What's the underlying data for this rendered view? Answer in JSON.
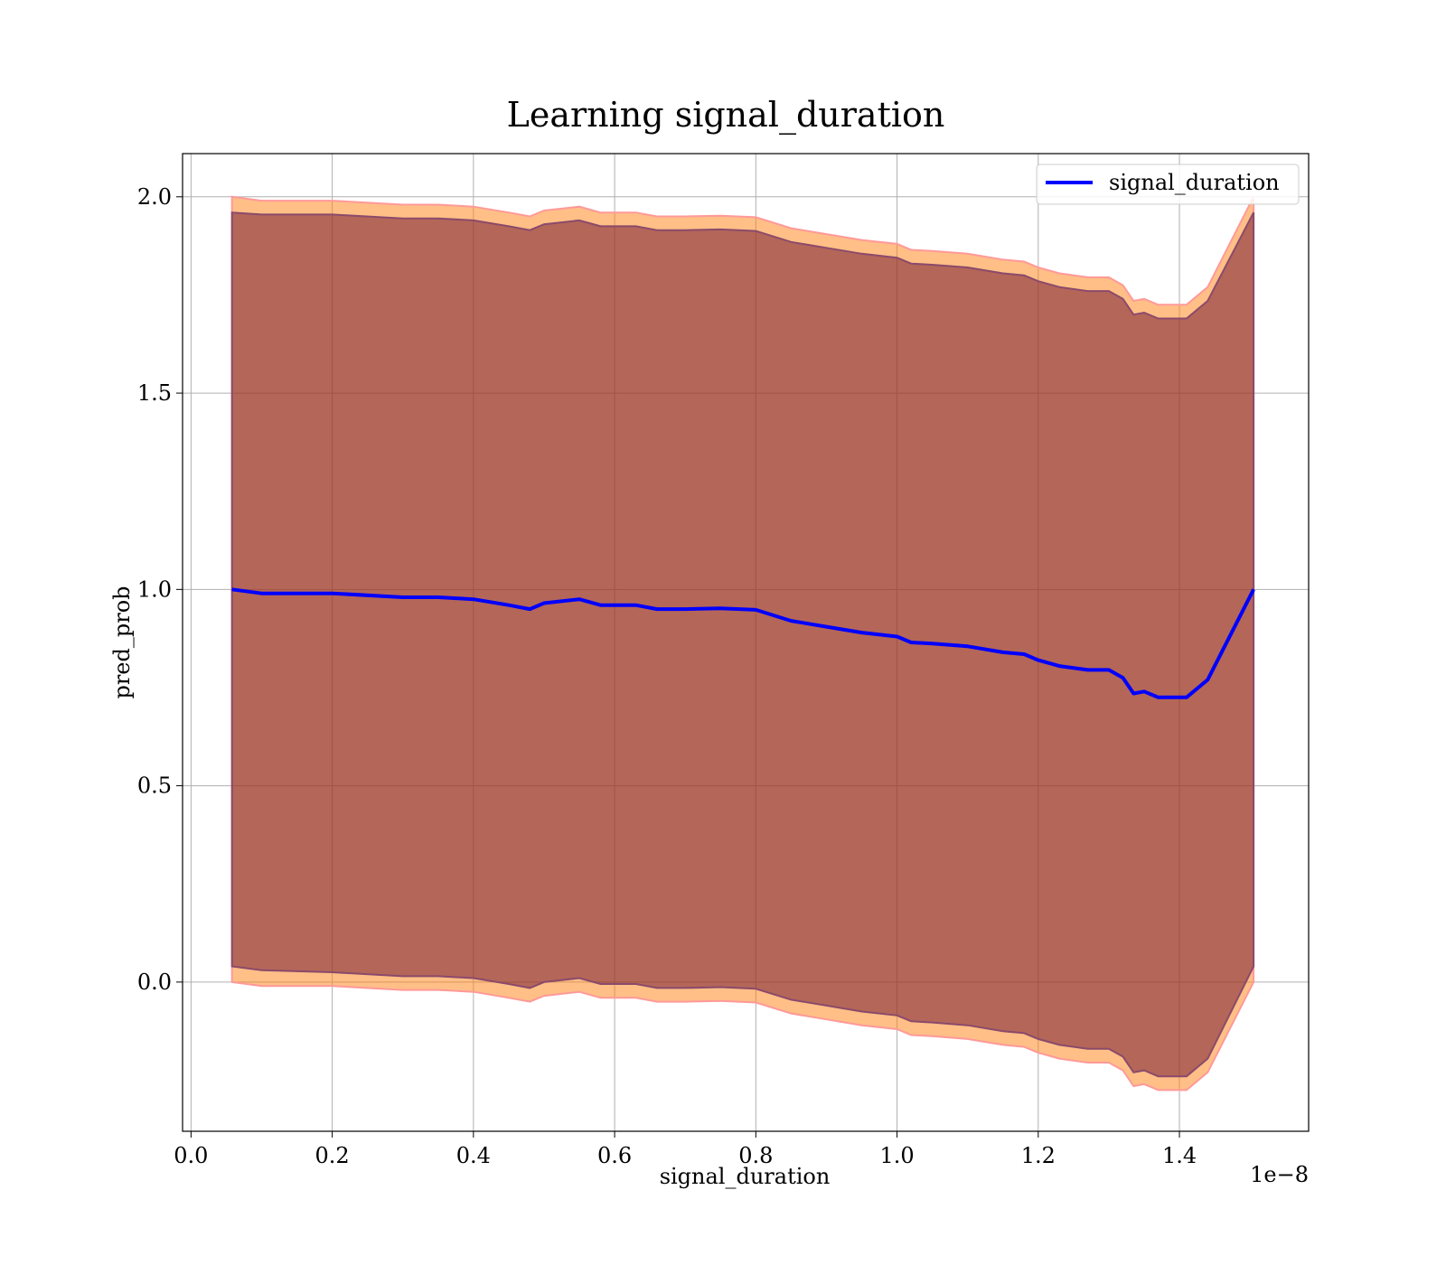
{
  "chart_data": {
    "type": "line",
    "title": "Learning signal_duration",
    "xlabel": "signal_duration",
    "ylabel": "pred_prob",
    "x_offset_text": "1e−8",
    "xlim": [
      -1.2e-10,
      1.583e-08
    ],
    "ylim": [
      -0.38,
      2.11
    ],
    "xticks": [
      0.0,
      2e-09,
      4e-09,
      6e-09,
      8e-09,
      1e-08,
      1.2e-08,
      1.4e-08
    ],
    "xtick_labels": [
      "0.0",
      "0.2",
      "0.4",
      "0.6",
      "0.8",
      "1.0",
      "1.2",
      "1.4"
    ],
    "yticks": [
      0.0,
      0.5,
      1.0,
      1.5,
      2.0
    ],
    "ytick_labels": [
      "0.0",
      "0.5",
      "1.0",
      "1.5",
      "2.0"
    ],
    "grid": true,
    "legend_position": "top-right",
    "series": [
      {
        "name": "signal_duration",
        "color": "#0000ff",
        "x": [
          5.8e-10,
          1e-09,
          2e-09,
          3e-09,
          3.5e-09,
          4e-09,
          4.5e-09,
          4.8e-09,
          5e-09,
          5.5e-09,
          5.8e-09,
          6e-09,
          6.3e-09,
          6.6e-09,
          7e-09,
          7.5e-09,
          8e-09,
          8.5e-09,
          9e-09,
          9.5e-09,
          1e-08,
          1.02e-08,
          1.05e-08,
          1.1e-08,
          1.15e-08,
          1.18e-08,
          1.2e-08,
          1.23e-08,
          1.27e-08,
          1.3e-08,
          1.32e-08,
          1.335e-08,
          1.35e-08,
          1.37e-08,
          1.41e-08,
          1.44e-08,
          1.505e-08
        ],
        "y": [
          1.0,
          0.99,
          0.99,
          0.98,
          0.98,
          0.975,
          0.96,
          0.95,
          0.965,
          0.975,
          0.96,
          0.96,
          0.96,
          0.95,
          0.95,
          0.952,
          0.948,
          0.92,
          0.905,
          0.89,
          0.88,
          0.865,
          0.862,
          0.855,
          0.84,
          0.835,
          0.82,
          0.805,
          0.795,
          0.795,
          0.775,
          0.735,
          0.74,
          0.725,
          0.725,
          0.77,
          1.0
        ]
      }
    ],
    "bands": [
      {
        "color": "#ff7f0e",
        "edge_color": "#ff9999",
        "x": [
          5.8e-10,
          1e-09,
          2e-09,
          3e-09,
          3.5e-09,
          4e-09,
          4.5e-09,
          4.8e-09,
          5e-09,
          5.5e-09,
          5.8e-09,
          6e-09,
          6.3e-09,
          6.6e-09,
          7e-09,
          7.5e-09,
          8e-09,
          8.5e-09,
          9e-09,
          9.5e-09,
          1e-08,
          1.02e-08,
          1.05e-08,
          1.1e-08,
          1.15e-08,
          1.18e-08,
          1.2e-08,
          1.23e-08,
          1.27e-08,
          1.3e-08,
          1.32e-08,
          1.335e-08,
          1.35e-08,
          1.37e-08,
          1.41e-08,
          1.44e-08,
          1.505e-08
        ],
        "lower": [
          0.0,
          -0.01,
          -0.01,
          -0.02,
          -0.02,
          -0.025,
          -0.04,
          -0.05,
          -0.035,
          -0.025,
          -0.04,
          -0.04,
          -0.04,
          -0.05,
          -0.05,
          -0.048,
          -0.052,
          -0.08,
          -0.095,
          -0.11,
          -0.12,
          -0.135,
          -0.138,
          -0.145,
          -0.16,
          -0.165,
          -0.18,
          -0.195,
          -0.205,
          -0.205,
          -0.225,
          -0.265,
          -0.26,
          -0.275,
          -0.275,
          -0.23,
          0.0
        ],
        "upper": [
          2.0,
          1.99,
          1.99,
          1.98,
          1.98,
          1.975,
          1.96,
          1.95,
          1.965,
          1.975,
          1.96,
          1.96,
          1.96,
          1.95,
          1.95,
          1.952,
          1.948,
          1.92,
          1.905,
          1.89,
          1.88,
          1.865,
          1.862,
          1.855,
          1.84,
          1.835,
          1.82,
          1.805,
          1.795,
          1.795,
          1.775,
          1.735,
          1.74,
          1.725,
          1.725,
          1.77,
          2.0
        ]
      },
      {
        "color": "#6a0d2b",
        "edge_color": "#8b4a6b",
        "x": [
          5.8e-10,
          1e-09,
          2e-09,
          3e-09,
          3.5e-09,
          4e-09,
          4.5e-09,
          4.8e-09,
          5e-09,
          5.5e-09,
          5.8e-09,
          6e-09,
          6.3e-09,
          6.6e-09,
          7e-09,
          7.5e-09,
          8e-09,
          8.5e-09,
          9e-09,
          9.5e-09,
          1e-08,
          1.02e-08,
          1.05e-08,
          1.1e-08,
          1.15e-08,
          1.18e-08,
          1.2e-08,
          1.23e-08,
          1.27e-08,
          1.3e-08,
          1.32e-08,
          1.335e-08,
          1.35e-08,
          1.37e-08,
          1.41e-08,
          1.44e-08,
          1.505e-08
        ],
        "lower": [
          0.04,
          0.03,
          0.025,
          0.015,
          0.015,
          0.01,
          -0.005,
          -0.015,
          0.0,
          0.01,
          -0.005,
          -0.005,
          -0.005,
          -0.015,
          -0.015,
          -0.013,
          -0.017,
          -0.045,
          -0.06,
          -0.075,
          -0.085,
          -0.1,
          -0.103,
          -0.11,
          -0.125,
          -0.13,
          -0.145,
          -0.16,
          -0.17,
          -0.17,
          -0.19,
          -0.23,
          -0.225,
          -0.24,
          -0.24,
          -0.195,
          0.04
        ],
        "upper": [
          1.96,
          1.955,
          1.955,
          1.945,
          1.945,
          1.94,
          1.925,
          1.915,
          1.93,
          1.94,
          1.925,
          1.925,
          1.925,
          1.915,
          1.915,
          1.917,
          1.913,
          1.885,
          1.87,
          1.855,
          1.845,
          1.83,
          1.827,
          1.82,
          1.805,
          1.8,
          1.785,
          1.77,
          1.76,
          1.76,
          1.74,
          1.7,
          1.705,
          1.69,
          1.69,
          1.735,
          1.96
        ]
      }
    ]
  }
}
